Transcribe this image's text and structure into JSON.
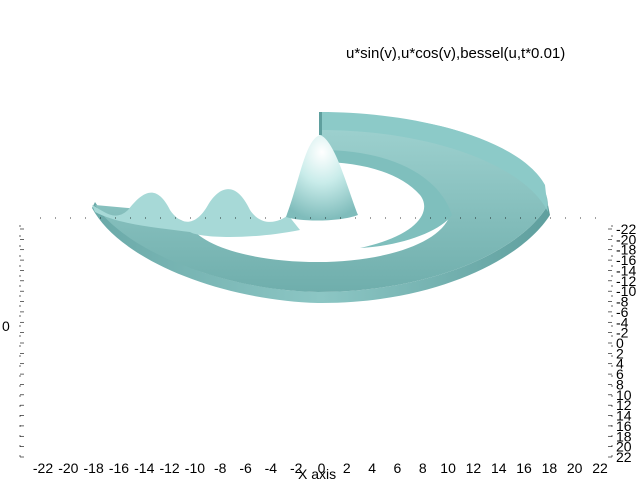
{
  "chart_data": {
    "type": "surface-3d",
    "title": "u*sin(v),u*cos(v),bessel(u,t*0.01)",
    "xlabel": "X axis",
    "function": "bessel(u,t*0.01)",
    "parametrization": [
      "u*sin(v)",
      "u*cos(v)",
      "bessel(u,t*0.01)"
    ],
    "x_ticks": [
      "-22",
      "-20",
      "-18",
      "-16",
      "-14",
      "-12",
      "-10",
      "-8",
      "-6",
      "-4",
      "-2",
      "0",
      "2",
      "4",
      "6",
      "8",
      "10",
      "12",
      "14",
      "16",
      "18",
      "20",
      "22"
    ],
    "right_axis_ticks": [
      "-22",
      "-20",
      "-18",
      "-16",
      "-14",
      "-12",
      "-10",
      "-8",
      "-6",
      "-4",
      "-2",
      "0",
      "2",
      "4",
      "6",
      "8",
      "10",
      "12",
      "14",
      "16",
      "18",
      "20",
      "22"
    ],
    "left_axis_ticks": [
      "0"
    ],
    "xlim": [
      -22,
      22
    ],
    "ylim": [
      -22,
      22
    ],
    "u_range": [
      0,
      18
    ],
    "grid": false,
    "colors": {
      "surface_base": "#6fb7b5",
      "surface_highlight": "#ffffff",
      "axes": "#000000",
      "background": "#ffffff"
    }
  }
}
